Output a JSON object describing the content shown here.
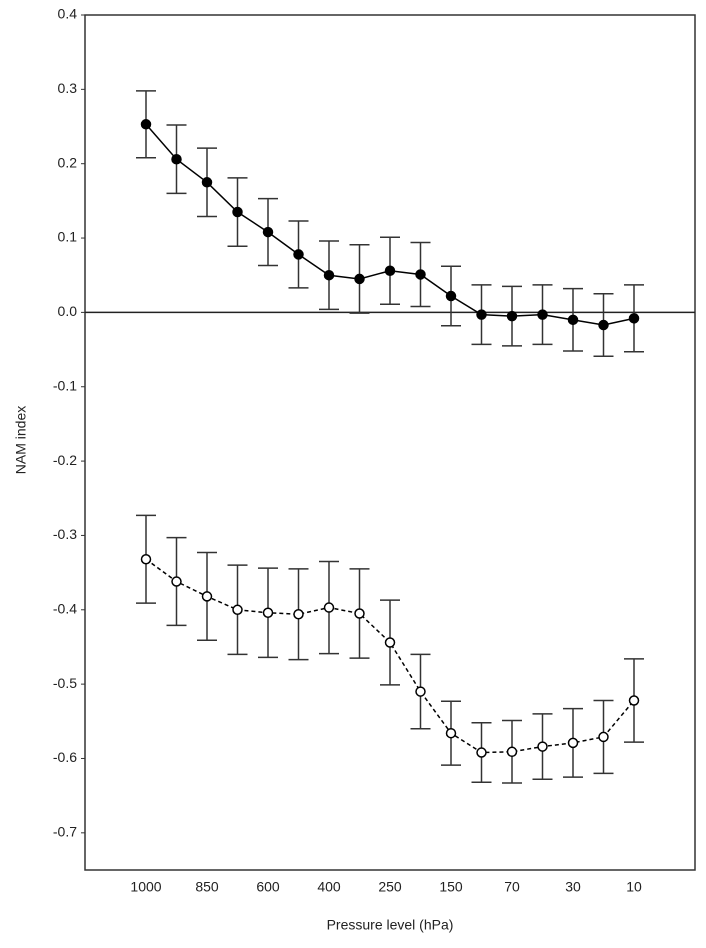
{
  "chart_data": {
    "type": "errorbar-line",
    "x_label": "Pressure level (hPa)",
    "y_label": "NAM index",
    "categories": [
      "1000",
      null,
      "850",
      null,
      "600",
      null,
      "400",
      null,
      "250",
      null,
      "150",
      null,
      "70",
      null,
      "30",
      null,
      "10"
    ],
    "ylim": [
      -0.75,
      0.4
    ],
    "yticks": [
      0.4,
      0.3,
      0.2,
      0.1,
      {
        "value": 0,
        "label": "0.0"
      },
      -0.1,
      -0.2,
      -0.3,
      -0.4,
      -0.5,
      -0.6,
      -0.7
    ],
    "zero_line": true,
    "series": [
      {
        "color": "#000000",
        "marker": "filled",
        "line_style": "solid",
        "values": [
          0.253,
          0.206,
          0.175,
          0.135,
          0.108,
          0.078,
          0.05,
          0.045,
          0.056,
          0.051,
          0.022,
          -0.003,
          -0.005,
          -0.003,
          -0.01,
          -0.017,
          -0.008
        ],
        "errors": [
          0.045,
          0.046,
          0.046,
          0.046,
          0.045,
          0.045,
          0.046,
          0.046,
          0.045,
          0.043,
          0.04,
          0.04,
          0.04,
          0.04,
          0.042,
          0.042,
          0.045
        ]
      },
      {
        "color": "#000000",
        "marker": "open",
        "line_style": "dashed",
        "values": [
          -0.332,
          -0.362,
          -0.382,
          -0.4,
          -0.404,
          -0.406,
          -0.397,
          -0.405,
          -0.444,
          -0.51,
          -0.566,
          -0.592,
          -0.591,
          -0.584,
          -0.579,
          -0.571,
          -0.522
        ],
        "errors": [
          0.059,
          0.059,
          0.059,
          0.06,
          0.06,
          0.061,
          0.062,
          0.06,
          0.057,
          0.05,
          0.043,
          0.04,
          0.042,
          0.044,
          0.046,
          0.049,
          0.056
        ]
      }
    ]
  }
}
